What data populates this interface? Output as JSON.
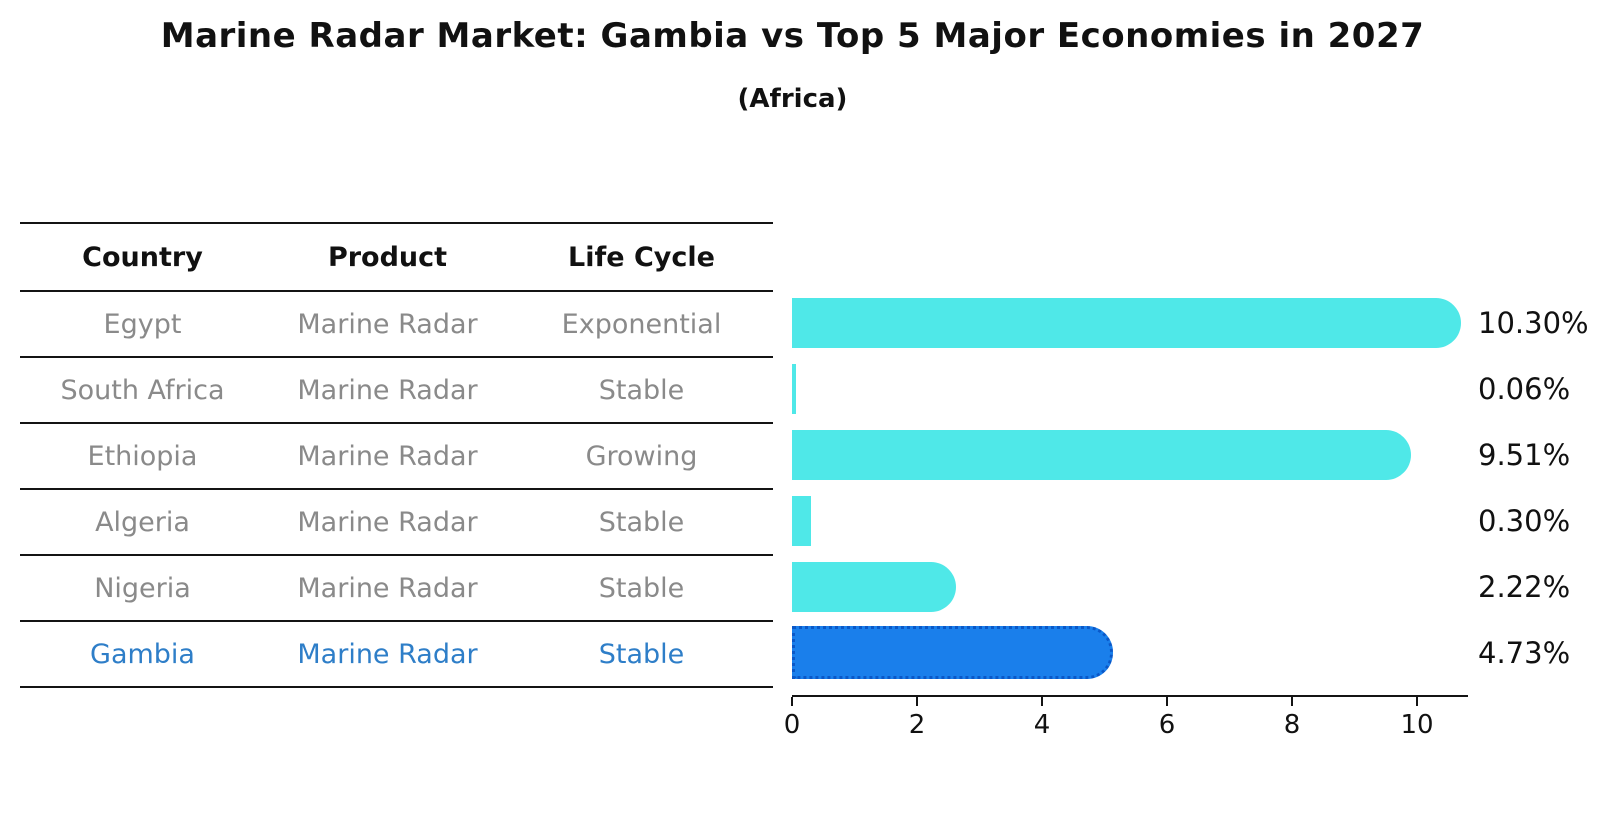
{
  "title": "Marine Radar Market: Gambia vs Top 5 Major Economies in 2027",
  "subtitle": "(Africa)",
  "table": {
    "headers": [
      "Country",
      "Product",
      "Life Cycle"
    ],
    "rows": [
      {
        "country": "Egypt",
        "product": "Marine Radar",
        "life_cycle": "Exponential",
        "highlight": false
      },
      {
        "country": "South Africa",
        "product": "Marine Radar",
        "life_cycle": "Stable",
        "highlight": false
      },
      {
        "country": "Ethiopia",
        "product": "Marine Radar",
        "life_cycle": "Growing",
        "highlight": false
      },
      {
        "country": "Algeria",
        "product": "Marine Radar",
        "life_cycle": "Stable",
        "highlight": false
      },
      {
        "country": "Nigeria",
        "product": "Marine Radar",
        "life_cycle": "Stable",
        "highlight": true
      }
    ],
    "last_row": {
      "country": "Gambia",
      "product": "Marine Radar",
      "life_cycle": "Stable"
    }
  },
  "chart_data": {
    "type": "bar",
    "orientation": "horizontal",
    "categories": [
      "Egypt",
      "South Africa",
      "Ethiopia",
      "Algeria",
      "Nigeria",
      "Gambia"
    ],
    "values": [
      10.3,
      0.06,
      9.51,
      0.3,
      2.22,
      4.73
    ],
    "value_labels": [
      "10.30%",
      "0.06%",
      "9.51%",
      "0.30%",
      "2.22%",
      "4.73%"
    ],
    "x_ticks": [
      "0",
      "2",
      "4",
      "6",
      "8",
      "10"
    ],
    "x_tick_values": [
      0,
      2,
      4,
      6,
      8,
      10
    ],
    "xlim": [
      0,
      10.8
    ],
    "grid": false,
    "legend": false,
    "bar_color": "#4fe8e8",
    "highlight_index": 5,
    "highlight_color": "#1a7feb",
    "highlight_border_color": "#0a58c8",
    "highlight_text_color": "#2e7ec8",
    "text_color_rows": "#8a8a8a"
  }
}
